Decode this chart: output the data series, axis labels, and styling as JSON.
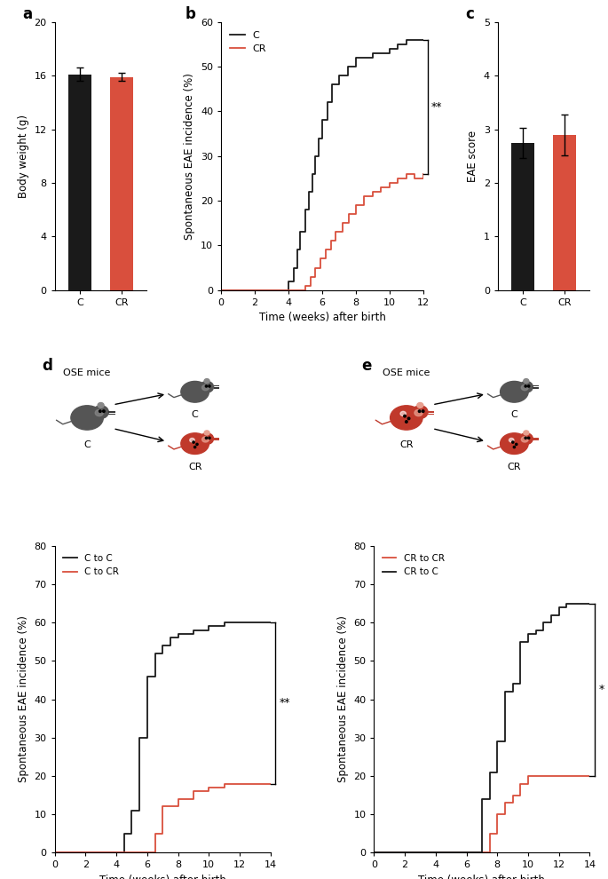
{
  "black_color": "#1a1a1a",
  "red_color": "#d94f3d",
  "mouse_gray": "#555555",
  "mouse_gray_light": "#888888",
  "mouse_red": "#c0392b",
  "mouse_red_light": "#e8a090",
  "panel_a": {
    "categories": [
      "C",
      "CR"
    ],
    "values": [
      16.1,
      15.9
    ],
    "errors": [
      0.5,
      0.3
    ],
    "colors": [
      "#1a1a1a",
      "#d94f3d"
    ],
    "ylabel": "Body weight (g)",
    "ylim": [
      0,
      20
    ],
    "yticks": [
      0,
      4,
      8,
      12,
      16,
      20
    ]
  },
  "panel_b": {
    "C_x": [
      0,
      4.0,
      4.0,
      4.3,
      4.3,
      4.5,
      4.5,
      4.7,
      4.7,
      5.0,
      5.0,
      5.2,
      5.2,
      5.4,
      5.4,
      5.6,
      5.6,
      5.8,
      5.8,
      6.0,
      6.0,
      6.3,
      6.3,
      6.6,
      6.6,
      7.0,
      7.0,
      7.5,
      7.5,
      8.0,
      8.0,
      9.0,
      9.0,
      10.0,
      10.0,
      10.5,
      10.5,
      11.0,
      11.0,
      12.0,
      12.0
    ],
    "C_y": [
      0,
      0,
      2,
      2,
      5,
      5,
      9,
      9,
      13,
      13,
      18,
      18,
      22,
      22,
      26,
      26,
      30,
      30,
      34,
      34,
      38,
      38,
      42,
      42,
      46,
      46,
      48,
      48,
      50,
      50,
      52,
      52,
      53,
      53,
      54,
      54,
      55,
      55,
      56,
      56,
      56
    ],
    "CR_x": [
      0,
      5.0,
      5.0,
      5.3,
      5.3,
      5.6,
      5.6,
      5.9,
      5.9,
      6.2,
      6.2,
      6.5,
      6.5,
      6.8,
      6.8,
      7.2,
      7.2,
      7.6,
      7.6,
      8.0,
      8.0,
      8.5,
      8.5,
      9.0,
      9.0,
      9.5,
      9.5,
      10.0,
      10.0,
      10.5,
      10.5,
      11.0,
      11.0,
      11.5,
      11.5,
      12.0,
      12.0
    ],
    "CR_y": [
      0,
      0,
      1,
      1,
      3,
      3,
      5,
      5,
      7,
      7,
      9,
      9,
      11,
      11,
      13,
      13,
      15,
      15,
      17,
      17,
      19,
      19,
      21,
      21,
      22,
      22,
      23,
      23,
      24,
      24,
      25,
      25,
      26,
      26,
      25,
      25,
      26
    ],
    "ylabel": "Spontaneous EAE incidence (%)",
    "xlabel": "Time (weeks) after birth",
    "ylim": [
      0,
      60
    ],
    "xlim": [
      0,
      12
    ],
    "yticks": [
      0,
      10,
      20,
      30,
      40,
      50,
      60
    ],
    "xticks": [
      0,
      2,
      4,
      6,
      8,
      10,
      12
    ],
    "significance": "**",
    "bracket_y1": 56,
    "bracket_y2": 26,
    "bracket_x": 12.0
  },
  "panel_c": {
    "categories": [
      "C",
      "CR"
    ],
    "values": [
      2.75,
      2.9
    ],
    "errors": [
      0.28,
      0.38
    ],
    "colors": [
      "#1a1a1a",
      "#d94f3d"
    ],
    "ylabel": "EAE score",
    "ylim": [
      0,
      5
    ],
    "yticks": [
      0,
      1,
      2,
      3,
      4,
      5
    ]
  },
  "panel_d": {
    "CtC_x": [
      0,
      4.5,
      4.5,
      5.0,
      5.0,
      5.5,
      5.5,
      6.0,
      6.0,
      6.5,
      6.5,
      7.0,
      7.0,
      7.5,
      7.5,
      8.0,
      8.0,
      9.0,
      9.0,
      10.0,
      10.0,
      11.0,
      11.0,
      12.0,
      12.0,
      13.0,
      13.0,
      14.0,
      14.0
    ],
    "CtC_y": [
      0,
      0,
      5,
      5,
      11,
      11,
      30,
      30,
      46,
      46,
      52,
      52,
      54,
      54,
      56,
      56,
      57,
      57,
      58,
      58,
      59,
      59,
      60,
      60,
      60,
      60,
      60,
      60,
      60
    ],
    "CtCR_x": [
      0,
      6.5,
      6.5,
      7.0,
      7.0,
      8.0,
      8.0,
      9.0,
      9.0,
      10.0,
      10.0,
      11.0,
      11.0,
      12.0,
      12.0,
      13.0,
      13.0,
      14.0,
      14.0
    ],
    "CtCR_y": [
      0,
      0,
      5,
      5,
      12,
      12,
      14,
      14,
      16,
      16,
      17,
      17,
      18,
      18,
      18,
      18,
      18,
      18,
      18
    ],
    "ylabel": "Spontaneous EAE incidence (%)",
    "xlabel": "Time (weeks) after birth",
    "ylim": [
      0,
      80
    ],
    "xlim": [
      0,
      14
    ],
    "yticks": [
      0,
      10,
      20,
      30,
      40,
      50,
      60,
      70,
      80
    ],
    "xticks": [
      0,
      2,
      4,
      6,
      8,
      10,
      12,
      14
    ],
    "significance": "**",
    "bracket_y1": 60,
    "bracket_y2": 18,
    "bracket_x": 14.0
  },
  "panel_e": {
    "CRtCR_x": [
      0,
      7.5,
      7.5,
      8.0,
      8.0,
      8.5,
      8.5,
      9.0,
      9.0,
      9.5,
      9.5,
      10.0,
      10.0,
      10.5,
      10.5,
      11.0,
      11.0,
      14.0,
      14.0
    ],
    "CRtCR_y": [
      0,
      0,
      5,
      5,
      10,
      10,
      13,
      13,
      15,
      15,
      18,
      18,
      20,
      20,
      20,
      20,
      20,
      20,
      20
    ],
    "CRtC_x": [
      0,
      7.0,
      7.0,
      7.5,
      7.5,
      8.0,
      8.0,
      8.5,
      8.5,
      9.0,
      9.0,
      9.5,
      9.5,
      10.0,
      10.0,
      10.5,
      10.5,
      11.0,
      11.0,
      11.5,
      11.5,
      12.0,
      12.0,
      12.5,
      12.5,
      13.0,
      13.0,
      14.0,
      14.0
    ],
    "CRtC_y": [
      0,
      0,
      14,
      14,
      21,
      21,
      29,
      29,
      42,
      42,
      44,
      44,
      55,
      55,
      57,
      57,
      58,
      58,
      60,
      60,
      62,
      62,
      64,
      64,
      65,
      65,
      65,
      65,
      65
    ],
    "ylabel": "Spontaneous EAE incidence (%)",
    "xlabel": "Time (weeks) after birth",
    "ylim": [
      0,
      80
    ],
    "xlim": [
      0,
      14
    ],
    "yticks": [
      0,
      10,
      20,
      30,
      40,
      50,
      60,
      70,
      80
    ],
    "xticks": [
      0,
      2,
      4,
      6,
      8,
      10,
      12,
      14
    ],
    "significance": "*",
    "bracket_y1": 65,
    "bracket_y2": 20,
    "bracket_x": 14.0
  }
}
